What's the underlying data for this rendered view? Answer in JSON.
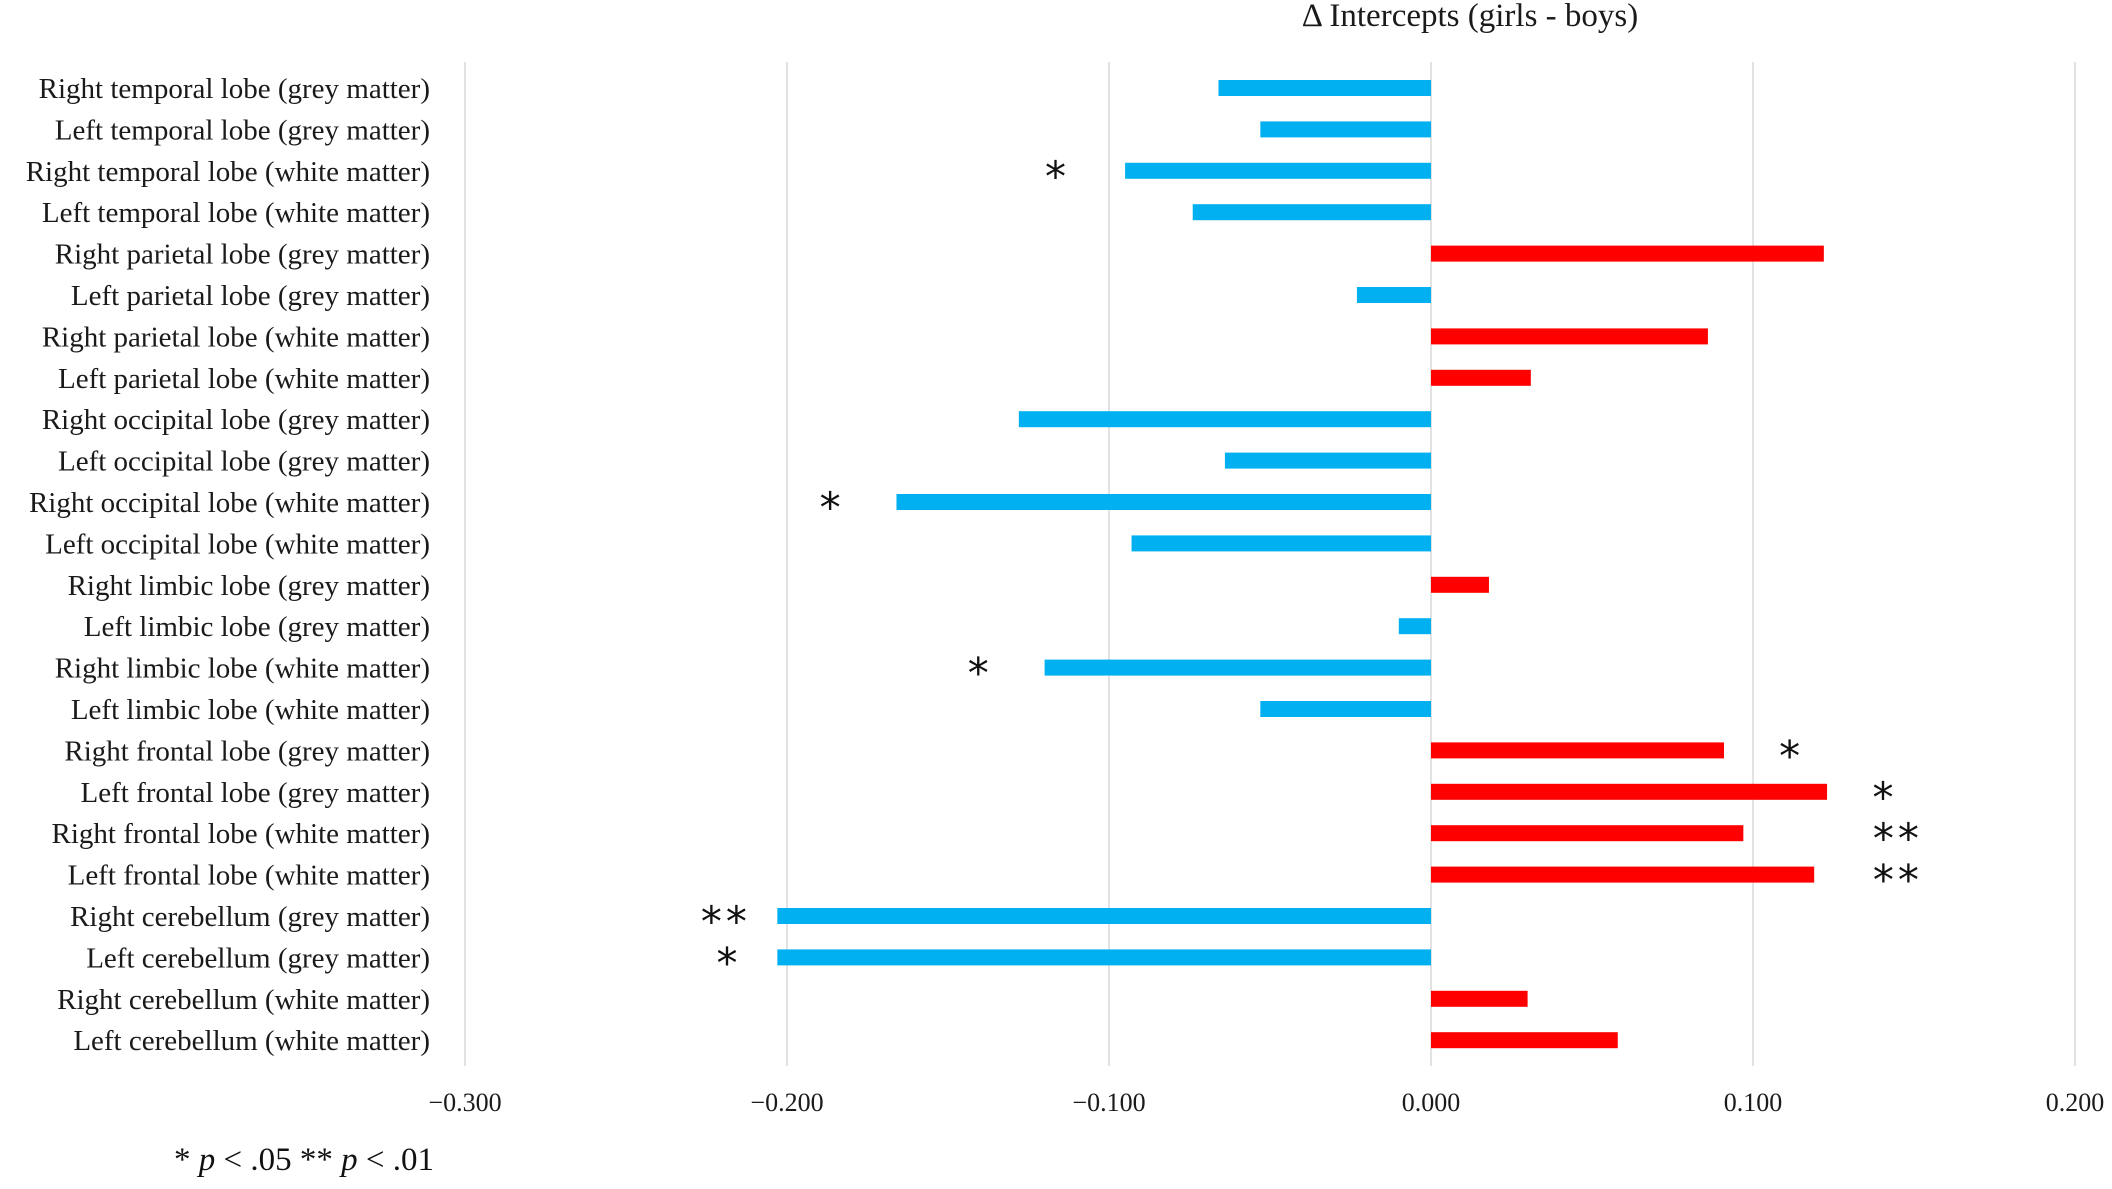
{
  "chart_data": {
    "type": "bar",
    "orientation": "horizontal",
    "title": "Δ Intercepts (girls - boys)",
    "xlim": [
      -0.3,
      0.2
    ],
    "x_ticks": [
      "−0.300",
      "−0.200",
      "−0.100",
      "0.000",
      "0.100",
      "0.200"
    ],
    "x_tick_values": [
      -0.3,
      -0.2,
      -0.1,
      0.0,
      0.1,
      0.2
    ],
    "grid": "vertical gridlines",
    "positive_color": "#ff0000",
    "negative_color": "#00b0f0",
    "categories": [
      "Right temporal lobe (grey matter)",
      "Left temporal lobe (grey matter)",
      "Right temporal lobe (white matter)",
      "Left temporal lobe (white matter)",
      "Right parietal lobe (grey matter)",
      "Left parietal lobe (grey matter)",
      "Right parietal lobe (white matter)",
      "Left parietal lobe (white matter)",
      "Right occipital lobe (grey matter)",
      "Left occipital lobe (grey matter)",
      "Right occipital lobe (white matter)",
      "Left occipital lobe (white matter)",
      "Right limbic lobe (grey matter)",
      "Left limbic lobe (grey matter)",
      "Right limbic lobe (white matter)",
      "Left limbic lobe (white matter)",
      "Right frontal lobe (grey matter)",
      "Left frontal lobe (grey matter)",
      "Right frontal lobe (white matter)",
      "Left frontal lobe (white matter)",
      "Right cerebellum (grey matter)",
      "Left cerebellum (grey matter)",
      "Right cerebellum (white matter)",
      "Left cerebellum (white matter)"
    ],
    "values": [
      -0.066,
      -0.053,
      -0.095,
      -0.074,
      0.122,
      -0.023,
      0.086,
      0.031,
      -0.128,
      -0.064,
      -0.166,
      -0.093,
      0.018,
      -0.01,
      -0.12,
      -0.053,
      0.091,
      0.123,
      0.097,
      0.119,
      -0.203,
      -0.203,
      0.03,
      0.058
    ],
    "significance": [
      "",
      "",
      "*",
      "",
      "",
      "",
      "",
      "",
      "",
      "",
      "*",
      "",
      "",
      "",
      "*",
      "",
      "*",
      "*",
      "**",
      "**",
      "**",
      "*",
      "",
      ""
    ],
    "significance_x": [
      null,
      null,
      -0.116,
      null,
      null,
      null,
      null,
      null,
      null,
      null,
      -0.186,
      null,
      null,
      null,
      -0.14,
      null,
      0.112,
      0.141,
      0.145,
      0.145,
      -0.219,
      -0.218,
      null,
      null
    ]
  },
  "footnote": {
    "star1": "* ",
    "p1": "p",
    "rest1": " < .05  ** ",
    "p2": "p",
    "rest2": " < .01"
  }
}
